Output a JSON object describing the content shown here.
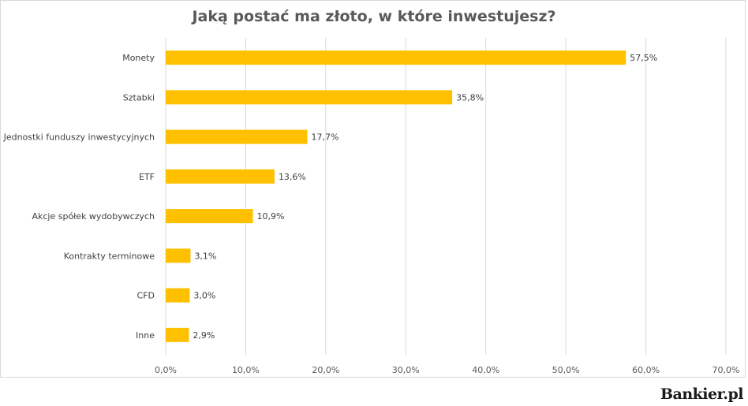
{
  "chart_data": {
    "type": "bar",
    "orientation": "horizontal",
    "title": "Jaką postać ma złoto, w które inwestujesz?",
    "categories": [
      "Monety",
      "Sztabki",
      "Jednostki funduszy inwestycyjnych",
      "ETF",
      "Akcje spółek wydobywczych",
      "Kontrakty terminowe",
      "CFD",
      "Inne"
    ],
    "values": [
      57.5,
      35.8,
      17.7,
      13.6,
      10.9,
      3.1,
      3.0,
      2.9
    ],
    "data_labels": [
      "57,5%",
      "35,8%",
      "17,7%",
      "13,6%",
      "10,9%",
      "3,1%",
      "3,0%",
      "2,9%"
    ],
    "xlim": [
      0,
      70
    ],
    "x_ticks": [
      0,
      10,
      20,
      30,
      40,
      50,
      60,
      70
    ],
    "x_tick_labels": [
      "0,0%",
      "10,0%",
      "20,0%",
      "30,0%",
      "40,0%",
      "50,0%",
      "60,0%",
      "70,0%"
    ],
    "grid": true,
    "legend": "none",
    "bar_color": "#FFC000"
  },
  "brand": {
    "name": "Bankier.pl"
  }
}
